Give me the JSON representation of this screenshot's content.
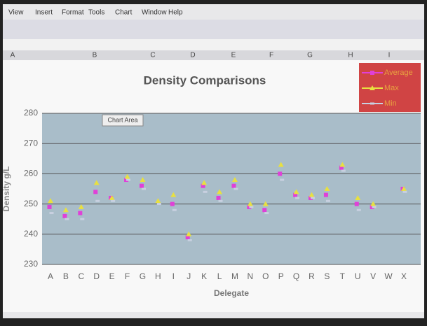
{
  "menu": [
    "View",
    "Insert",
    "Format",
    "Tools",
    "Chart",
    "Window",
    "Help"
  ],
  "sheet": {
    "columns": [
      "A",
      "B",
      "C",
      "D",
      "E",
      "F",
      "G",
      "H",
      "I"
    ]
  },
  "tooltip": "Chart Area",
  "chart_data": {
    "type": "scatter",
    "title": "Density Comparisons",
    "y_label": "Density g/L",
    "x_label": "Delegate",
    "categories": [
      "A",
      "B",
      "C",
      "D",
      "E",
      "F",
      "G",
      "H",
      "I",
      "J",
      "K",
      "L",
      "M",
      "N",
      "O",
      "P",
      "Q",
      "R",
      "S",
      "T",
      "U",
      "V",
      "W",
      "X"
    ],
    "series": [
      {
        "name": "Average",
        "color": "#e040d8",
        "values": [
          249,
          246,
          247,
          254,
          252,
          258,
          256,
          null,
          250,
          239,
          256,
          252,
          256,
          249,
          248,
          260,
          253,
          252,
          253,
          262,
          250,
          249,
          null,
          255
        ]
      },
      {
        "name": "Max",
        "color": "#e8e040",
        "values": [
          251,
          248,
          249,
          257,
          252,
          259,
          258,
          251,
          253,
          240,
          257,
          254,
          258,
          250,
          250,
          263,
          254,
          253,
          255,
          263,
          252,
          250,
          null,
          255
        ]
      },
      {
        "name": "Min",
        "color": "#c8d0e0",
        "values": [
          247,
          245,
          245,
          251,
          251,
          258,
          255,
          250,
          248,
          238,
          254,
          251,
          255,
          249,
          247,
          258,
          252,
          252,
          251,
          261,
          248,
          249,
          null,
          254
        ]
      }
    ],
    "ylim": [
      230,
      280
    ],
    "yticks": [
      230,
      240,
      250,
      260,
      270,
      280
    ],
    "grid": true,
    "legend": "top-right"
  }
}
